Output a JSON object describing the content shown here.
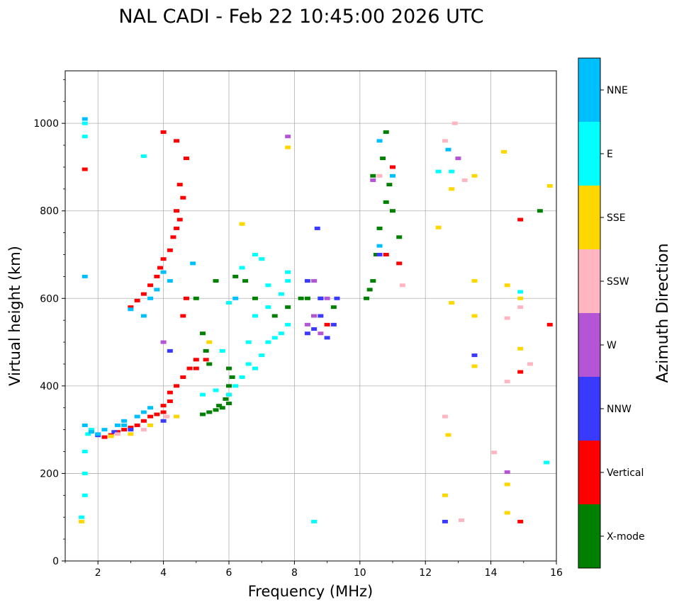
{
  "chart_data": {
    "type": "scatter",
    "title": "NAL CADI - Feb 22 10:45:00 2026 UTC",
    "xlabel": "Frequency (MHz)",
    "ylabel": "Virtual height (km)",
    "xlim": [
      1,
      16
    ],
    "ylim": [
      0,
      1120
    ],
    "xticks": [
      2,
      4,
      6,
      8,
      10,
      12,
      14,
      16
    ],
    "yticks": [
      0,
      200,
      400,
      600,
      800,
      1000
    ],
    "grid": true,
    "colorbar": {
      "label": "Azimuth Direction",
      "categories": [
        "X-mode",
        "Vertical",
        "NNW",
        "W",
        "SSW",
        "SSE",
        "E",
        "NNE"
      ],
      "colors": [
        "#008000",
        "#ff0000",
        "#3a3aff",
        "#b455d6",
        "#ffb6c1",
        "#ffd700",
        "#00ffff",
        "#00bfff"
      ]
    },
    "series": [
      {
        "name": "X-mode",
        "color": "#008000",
        "points": [
          [
            5.2,
            335
          ],
          [
            5.4,
            340
          ],
          [
            5.6,
            345
          ],
          [
            5.8,
            350
          ],
          [
            6.0,
            360
          ],
          [
            6.0,
            380
          ],
          [
            6.0,
            400
          ],
          [
            5.9,
            370
          ],
          [
            5.7,
            355
          ],
          [
            6.1,
            420
          ],
          [
            6.0,
            440
          ],
          [
            5.4,
            450
          ],
          [
            5.3,
            480
          ],
          [
            5.2,
            520
          ],
          [
            5.0,
            600
          ],
          [
            5.6,
            640
          ],
          [
            6.2,
            650
          ],
          [
            6.5,
            640
          ],
          [
            6.8,
            600
          ],
          [
            7.4,
            560
          ],
          [
            7.8,
            580
          ],
          [
            8.4,
            600
          ],
          [
            8.6,
            560
          ],
          [
            8.8,
            600
          ],
          [
            9.2,
            580
          ],
          [
            10.2,
            600
          ],
          [
            10.4,
            640
          ],
          [
            10.5,
            700
          ],
          [
            10.6,
            760
          ],
          [
            10.8,
            820
          ],
          [
            10.9,
            860
          ],
          [
            10.7,
            920
          ],
          [
            10.8,
            980
          ],
          [
            10.4,
            880
          ],
          [
            11.0,
            800
          ],
          [
            11.2,
            740
          ],
          [
            10.3,
            620
          ],
          [
            15.5,
            800
          ],
          [
            8.2,
            600
          ]
        ]
      },
      {
        "name": "Vertical",
        "color": "#ff0000",
        "points": [
          [
            2.2,
            283
          ],
          [
            2.4,
            288
          ],
          [
            2.6,
            295
          ],
          [
            2.8,
            300
          ],
          [
            3.0,
            305
          ],
          [
            3.2,
            310
          ],
          [
            3.4,
            320
          ],
          [
            3.6,
            330
          ],
          [
            3.8,
            335
          ],
          [
            4.0,
            340
          ],
          [
            4.0,
            355
          ],
          [
            4.2,
            365
          ],
          [
            4.2,
            385
          ],
          [
            4.4,
            400
          ],
          [
            4.6,
            420
          ],
          [
            4.8,
            440
          ],
          [
            5.0,
            460
          ],
          [
            3.0,
            580
          ],
          [
            3.2,
            595
          ],
          [
            3.4,
            610
          ],
          [
            3.6,
            630
          ],
          [
            3.8,
            650
          ],
          [
            3.9,
            670
          ],
          [
            4.0,
            690
          ],
          [
            4.2,
            710
          ],
          [
            4.3,
            740
          ],
          [
            4.4,
            760
          ],
          [
            4.5,
            780
          ],
          [
            4.4,
            800
          ],
          [
            4.6,
            830
          ],
          [
            4.5,
            860
          ],
          [
            4.7,
            920
          ],
          [
            4.4,
            960
          ],
          [
            4.0,
            980
          ],
          [
            4.6,
            560
          ],
          [
            4.7,
            600
          ],
          [
            5.0,
            440
          ],
          [
            5.3,
            460
          ],
          [
            9.0,
            540
          ],
          [
            10.8,
            700
          ],
          [
            11.2,
            680
          ],
          [
            11.0,
            900
          ],
          [
            14.9,
            780
          ],
          [
            15.8,
            540
          ],
          [
            14.9,
            432
          ],
          [
            14.9,
            90
          ],
          [
            1.6,
            895
          ]
        ]
      },
      {
        "name": "NNW",
        "color": "#3a3aff",
        "points": [
          [
            2.0,
            287
          ],
          [
            2.5,
            295
          ],
          [
            3.0,
            300
          ],
          [
            4.0,
            320
          ],
          [
            4.2,
            480
          ],
          [
            8.4,
            520
          ],
          [
            8.6,
            530
          ],
          [
            8.8,
            560
          ],
          [
            9.0,
            510
          ],
          [
            9.2,
            540
          ],
          [
            8.8,
            600
          ],
          [
            8.4,
            640
          ],
          [
            9.3,
            600
          ],
          [
            10.6,
            700
          ],
          [
            12.6,
            90
          ],
          [
            13.5,
            470
          ],
          [
            8.7,
            760
          ]
        ]
      },
      {
        "name": "W",
        "color": "#b455d6",
        "points": [
          [
            8.4,
            540
          ],
          [
            8.6,
            560
          ],
          [
            8.8,
            520
          ],
          [
            9.0,
            600
          ],
          [
            8.6,
            640
          ],
          [
            7.8,
            970
          ],
          [
            13.0,
            920
          ],
          [
            10.4,
            870
          ],
          [
            4.0,
            500
          ],
          [
            14.5,
            203
          ]
        ]
      },
      {
        "name": "SSW",
        "color": "#ffb6c1",
        "points": [
          [
            2.6,
            290
          ],
          [
            3.4,
            300
          ],
          [
            4.1,
            330
          ],
          [
            10.6,
            880
          ],
          [
            12.6,
            330
          ],
          [
            12.6,
            960
          ],
          [
            12.9,
            1000
          ],
          [
            13.2,
            870
          ],
          [
            14.1,
            248
          ],
          [
            14.5,
            555
          ],
          [
            14.9,
            580
          ],
          [
            15.2,
            450
          ],
          [
            14.5,
            410
          ],
          [
            13.1,
            93
          ],
          [
            11.3,
            630
          ]
        ]
      },
      {
        "name": "SSE",
        "color": "#ffd700",
        "points": [
          [
            2.4,
            285
          ],
          [
            3.0,
            290
          ],
          [
            3.6,
            310
          ],
          [
            4.4,
            330
          ],
          [
            5.4,
            500
          ],
          [
            6.4,
            770
          ],
          [
            7.8,
            945
          ],
          [
            12.8,
            590
          ],
          [
            12.8,
            850
          ],
          [
            12.7,
            288
          ],
          [
            13.5,
            640
          ],
          [
            13.5,
            880
          ],
          [
            13.5,
            560
          ],
          [
            13.5,
            445
          ],
          [
            14.4,
            935
          ],
          [
            14.5,
            630
          ],
          [
            14.5,
            175
          ],
          [
            14.9,
            485
          ],
          [
            14.9,
            600
          ],
          [
            15.8,
            857
          ],
          [
            12.6,
            150
          ],
          [
            14.5,
            110
          ],
          [
            12.4,
            762
          ],
          [
            1.5,
            90
          ]
        ]
      },
      {
        "name": "E",
        "color": "#00ffff",
        "points": [
          [
            1.6,
            150
          ],
          [
            1.6,
            200
          ],
          [
            1.6,
            250
          ],
          [
            1.7,
            290
          ],
          [
            1.8,
            300
          ],
          [
            5.2,
            380
          ],
          [
            5.6,
            390
          ],
          [
            6.0,
            380
          ],
          [
            6.2,
            400
          ],
          [
            6.4,
            420
          ],
          [
            6.6,
            450
          ],
          [
            6.8,
            440
          ],
          [
            7.0,
            470
          ],
          [
            7.2,
            500
          ],
          [
            7.4,
            510
          ],
          [
            7.6,
            520
          ],
          [
            7.8,
            540
          ],
          [
            6.6,
            500
          ],
          [
            6.8,
            560
          ],
          [
            7.2,
            580
          ],
          [
            7.6,
            610
          ],
          [
            7.8,
            640
          ],
          [
            6.4,
            670
          ],
          [
            6.8,
            700
          ],
          [
            7.2,
            630
          ],
          [
            7.8,
            660
          ],
          [
            6.0,
            590
          ],
          [
            5.8,
            480
          ],
          [
            1.6,
            1000
          ],
          [
            1.6,
            970
          ],
          [
            3.4,
            925
          ],
          [
            8.6,
            90
          ],
          [
            12.4,
            890
          ],
          [
            12.8,
            890
          ],
          [
            14.9,
            615
          ],
          [
            15.7,
            225
          ],
          [
            1.5,
            100
          ],
          [
            7.0,
            690
          ]
        ]
      },
      {
        "name": "NNE",
        "color": "#00bfff",
        "points": [
          [
            1.6,
            310
          ],
          [
            1.8,
            295
          ],
          [
            2.0,
            290
          ],
          [
            2.2,
            300
          ],
          [
            2.6,
            310
          ],
          [
            2.8,
            320
          ],
          [
            3.2,
            330
          ],
          [
            3.4,
            340
          ],
          [
            3.6,
            350
          ],
          [
            3.4,
            560
          ],
          [
            3.0,
            575
          ],
          [
            3.6,
            600
          ],
          [
            3.8,
            620
          ],
          [
            4.0,
            660
          ],
          [
            4.2,
            640
          ],
          [
            2.8,
            310
          ],
          [
            10.6,
            720
          ],
          [
            11.0,
            880
          ],
          [
            10.6,
            960
          ],
          [
            12.7,
            940
          ],
          [
            1.6,
            650
          ],
          [
            1.6,
            1010
          ],
          [
            4.9,
            680
          ],
          [
            6.2,
            600
          ]
        ]
      }
    ]
  }
}
